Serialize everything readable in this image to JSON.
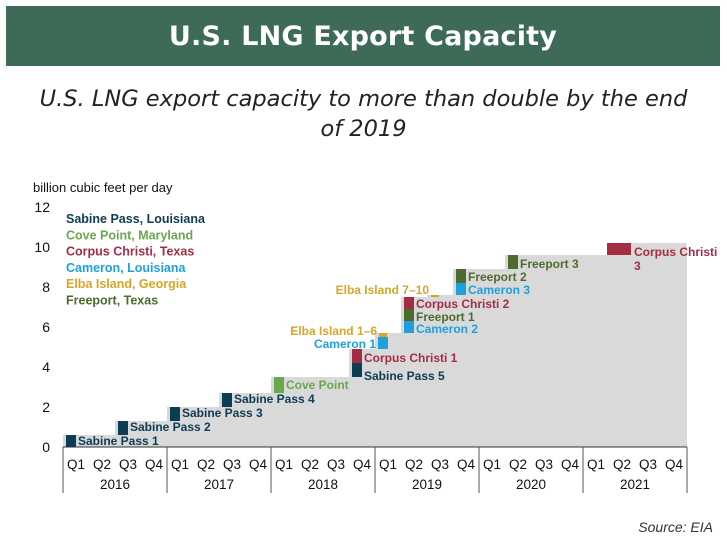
{
  "header": {
    "title": "U.S. LNG Export Capacity"
  },
  "subtitle": {
    "line1": "U.S. LNG export capacity to more than double by the end",
    "line2": "of 2019"
  },
  "source": "Source: EIA",
  "colors": {
    "banner": "#3e6b58",
    "area": "#d9d9d9",
    "louisiana_sabine": "#0d3c55",
    "maryland": "#6aa84f",
    "texas_corpus": "#a32d45",
    "louisiana_cameron": "#1fa0dd",
    "georgia": "#d7a529",
    "texas_freeport": "#4e6b2d"
  },
  "chart_data": {
    "type": "area",
    "ylabel": "billion cubic feet per day",
    "ylim": [
      0,
      12
    ],
    "yticks": [
      "0",
      "2",
      "4",
      "6",
      "8",
      "10",
      "12"
    ],
    "quarter_labels": [
      "Q1",
      "Q2",
      "Q3",
      "Q4"
    ],
    "years": [
      "2016",
      "2017",
      "2018",
      "2019",
      "2020",
      "2021"
    ],
    "legend": [
      {
        "label": "Sabine Pass, Louisiana",
        "color": "#0d3c55"
      },
      {
        "label": "Cove Point, Maryland",
        "color": "#6aa84f"
      },
      {
        "label": "Corpus Christi, Texas",
        "color": "#a32d45"
      },
      {
        "label": "Cameron, Louisiana",
        "color": "#1fa0dd"
      },
      {
        "label": "Elba Island, Georgia",
        "color": "#d7a529"
      },
      {
        "label": "Freeport, Texas",
        "color": "#4e6b2d"
      }
    ],
    "capacity_steps": [
      {
        "quarter": "2016 Q1",
        "bottom": 0,
        "top": 0.6,
        "label": "Sabine Pass 1",
        "color": "#0d3c55"
      },
      {
        "quarter": "2016 Q3",
        "bottom": 0.6,
        "top": 1.3,
        "label": "Sabine Pass 2",
        "color": "#0d3c55"
      },
      {
        "quarter": "2017 Q1",
        "bottom": 1.3,
        "top": 2.0,
        "label": "Sabine Pass 3",
        "color": "#0d3c55"
      },
      {
        "quarter": "2017 Q3",
        "bottom": 2.0,
        "top": 2.7,
        "label": "Sabine Pass 4",
        "color": "#0d3c55"
      },
      {
        "quarter": "2018 Q1",
        "bottom": 2.7,
        "top": 3.5,
        "label": "Cove Point",
        "color": "#6aa84f"
      },
      {
        "quarter": "2018 Q4",
        "bottom": 3.5,
        "top": 4.2,
        "label": "Sabine Pass 5",
        "color": "#0d3c55"
      },
      {
        "quarter": "2018 Q4",
        "bottom": 4.2,
        "top": 4.9,
        "label": "Corpus Christi 1",
        "color": "#a32d45"
      },
      {
        "quarter": "2019 Q1",
        "bottom": 4.9,
        "top": 5.5,
        "label": "Cameron 1",
        "color": "#1fa0dd"
      },
      {
        "quarter": "2019 Q1",
        "bottom": 5.5,
        "top": 5.7,
        "label": "Elba Island 1–6",
        "color": "#d7a529"
      },
      {
        "quarter": "2019 Q2",
        "bottom": 5.7,
        "top": 6.3,
        "label": "Cameron 2",
        "color": "#1fa0dd"
      },
      {
        "quarter": "2019 Q2",
        "bottom": 6.3,
        "top": 6.9,
        "label": "Freeport 1",
        "color": "#4e6b2d"
      },
      {
        "quarter": "2019 Q2",
        "bottom": 6.9,
        "top": 7.5,
        "label": "Corpus Christi 2",
        "color": "#a32d45"
      },
      {
        "quarter": "2019 Q3",
        "bottom": 7.5,
        "top": 7.6,
        "label": "Elba Island 7–10",
        "color": "#d7a529"
      },
      {
        "quarter": "2019 Q4",
        "bottom": 7.6,
        "top": 8.2,
        "label": "Cameron 3",
        "color": "#1fa0dd"
      },
      {
        "quarter": "2019 Q4",
        "bottom": 8.2,
        "top": 8.9,
        "label": "Freeport 2",
        "color": "#4e6b2d"
      },
      {
        "quarter": "2020 Q2",
        "bottom": 8.9,
        "top": 9.6,
        "label": "Freeport 3",
        "color": "#4e6b2d"
      },
      {
        "quarter": "2021 Q2",
        "bottom": 9.6,
        "top": 10.2,
        "label": "Corpus Christi 3",
        "color": "#a32d45"
      }
    ],
    "area_total": [
      0.6,
      0.6,
      1.3,
      1.3,
      2.0,
      2.0,
      2.7,
      2.7,
      3.5,
      3.5,
      3.5,
      4.9,
      5.7,
      7.5,
      7.6,
      8.9,
      8.9,
      9.6,
      9.6,
      9.6,
      9.6,
      10.2,
      10.2,
      10.2
    ]
  }
}
